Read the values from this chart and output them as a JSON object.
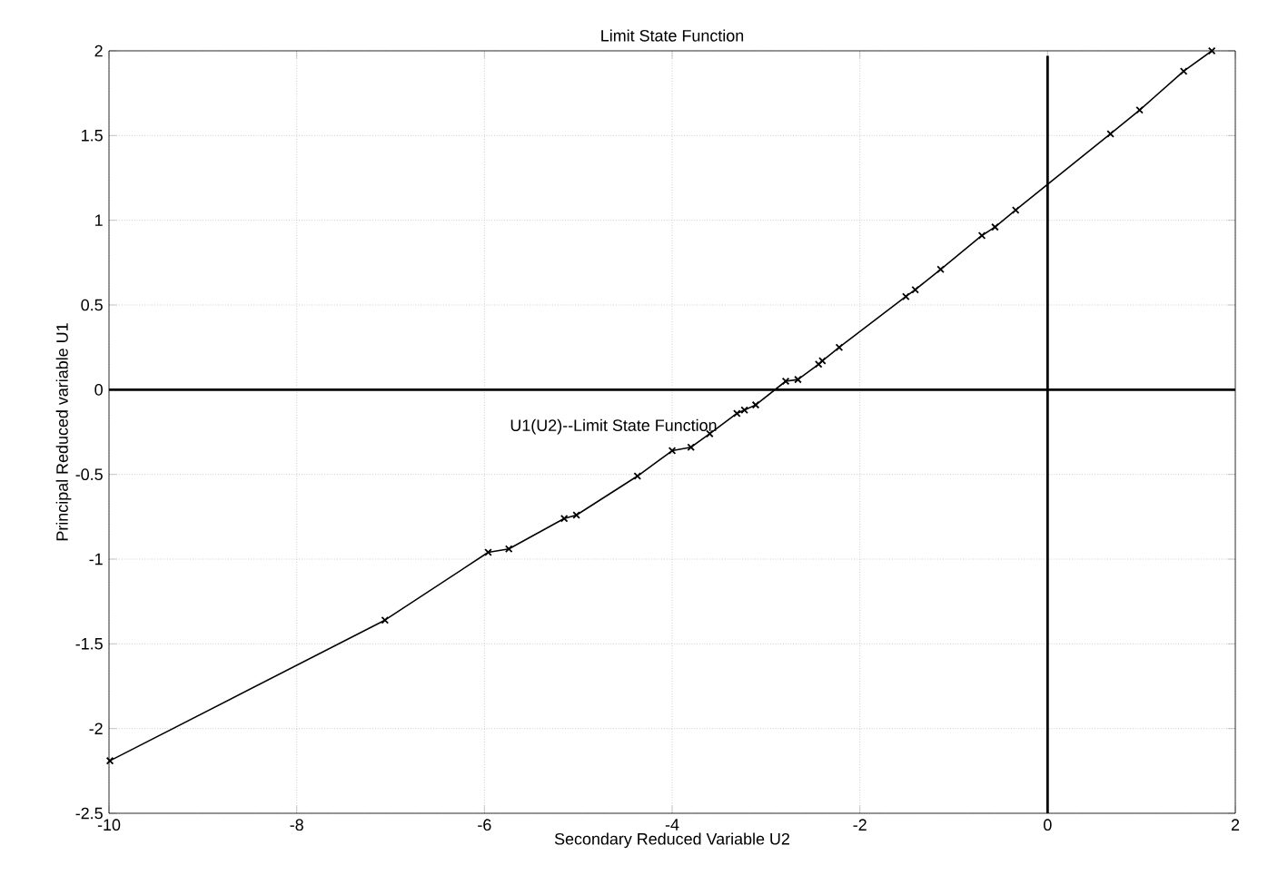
{
  "chart_data": {
    "type": "line",
    "title": "Limit State Function",
    "xlabel": "Secondary Reduced Variable U2",
    "ylabel": "Principal Reduced variable U1",
    "x": [
      -9.99,
      -7.06,
      -5.96,
      -5.74,
      -5.15,
      -5.02,
      -4.37,
      -4.0,
      -3.8,
      -3.6,
      -3.31,
      -3.23,
      -3.11,
      -2.79,
      -2.66,
      -2.44,
      -2.4,
      -2.22,
      -1.51,
      -1.41,
      -1.14,
      -0.7,
      -0.56,
      -0.34,
      0.67,
      0.98,
      1.45,
      1.75
    ],
    "series": [
      {
        "color": "#000000",
        "values": [
          -2.19,
          -1.36,
          -0.96,
          -0.94,
          -0.76,
          -0.74,
          -0.51,
          -0.36,
          -0.34,
          -0.26,
          -0.14,
          -0.12,
          -0.09,
          0.05,
          0.06,
          0.15,
          0.17,
          0.25,
          0.55,
          0.59,
          0.71,
          0.91,
          0.96,
          1.06,
          1.51,
          1.65,
          1.88,
          2.0
        ]
      },
      {
        "color": "#000000",
        "marker": "none",
        "x": [
          -10,
          2
        ],
        "values": [
          0,
          0
        ]
      },
      {
        "color": "#000000",
        "marker": "none",
        "x": [
          0,
          0
        ],
        "values": [
          -2.5,
          1.97
        ]
      }
    ],
    "xlim": [
      -10,
      2
    ],
    "ylim": [
      -2.5,
      2
    ],
    "xticks": [
      -10,
      -8,
      -6,
      -4,
      -2,
      0,
      2
    ],
    "yticks": [
      -2.5,
      -2,
      -1.5,
      -1,
      -0.5,
      0,
      0.5,
      1,
      1.5,
      2
    ],
    "grid": true,
    "marker": "cross",
    "line_style": "solid",
    "annotations": [
      "U1(U2)--Limit State Function"
    ]
  }
}
